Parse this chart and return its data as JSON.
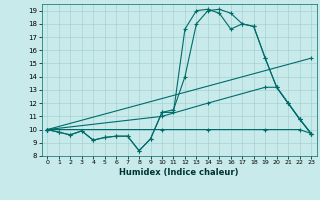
{
  "xlabel": "Humidex (Indice chaleur)",
  "xlim": [
    -0.5,
    23.5
  ],
  "ylim": [
    8,
    19.5
  ],
  "yticks": [
    8,
    9,
    10,
    11,
    12,
    13,
    14,
    15,
    16,
    17,
    18,
    19
  ],
  "xticks": [
    0,
    1,
    2,
    3,
    4,
    5,
    6,
    7,
    8,
    9,
    10,
    11,
    12,
    13,
    14,
    15,
    16,
    17,
    18,
    19,
    20,
    21,
    22,
    23
  ],
  "background_color": "#c8eaea",
  "line_color": "#006b6b",
  "series": [
    {
      "x": [
        0,
        1,
        2,
        3,
        4,
        5,
        6,
        7,
        8,
        9,
        10,
        11,
        12,
        13,
        14,
        15,
        16,
        17,
        18,
        19,
        20,
        21,
        22,
        23
      ],
      "y": [
        10.0,
        9.8,
        9.6,
        9.9,
        9.2,
        9.4,
        9.5,
        9.5,
        8.4,
        9.3,
        11.3,
        11.3,
        17.6,
        19.0,
        19.1,
        18.8,
        17.6,
        18.0,
        17.8,
        15.4,
        13.2,
        12.0,
        10.8,
        9.7
      ]
    },
    {
      "x": [
        0,
        1,
        2,
        3,
        4,
        5,
        6,
        7,
        8,
        9,
        10,
        11,
        12,
        13,
        14,
        15,
        16,
        17,
        18,
        19,
        20,
        21,
        22,
        23
      ],
      "y": [
        10.0,
        9.8,
        9.6,
        9.9,
        9.2,
        9.4,
        9.5,
        9.5,
        8.4,
        9.3,
        11.3,
        11.5,
        14.0,
        18.0,
        19.0,
        19.1,
        18.8,
        18.0,
        17.8,
        15.4,
        13.2,
        12.0,
        10.8,
        9.7
      ]
    },
    {
      "x": [
        0,
        23
      ],
      "y": [
        10.0,
        15.4
      ]
    },
    {
      "x": [
        0,
        10,
        14,
        19,
        20,
        21,
        22,
        23
      ],
      "y": [
        10.0,
        11.0,
        12.0,
        13.2,
        13.2,
        12.0,
        10.8,
        9.7
      ]
    },
    {
      "x": [
        0,
        10,
        14,
        19,
        22,
        23
      ],
      "y": [
        10.0,
        10.0,
        10.0,
        10.0,
        10.0,
        9.7
      ]
    }
  ]
}
